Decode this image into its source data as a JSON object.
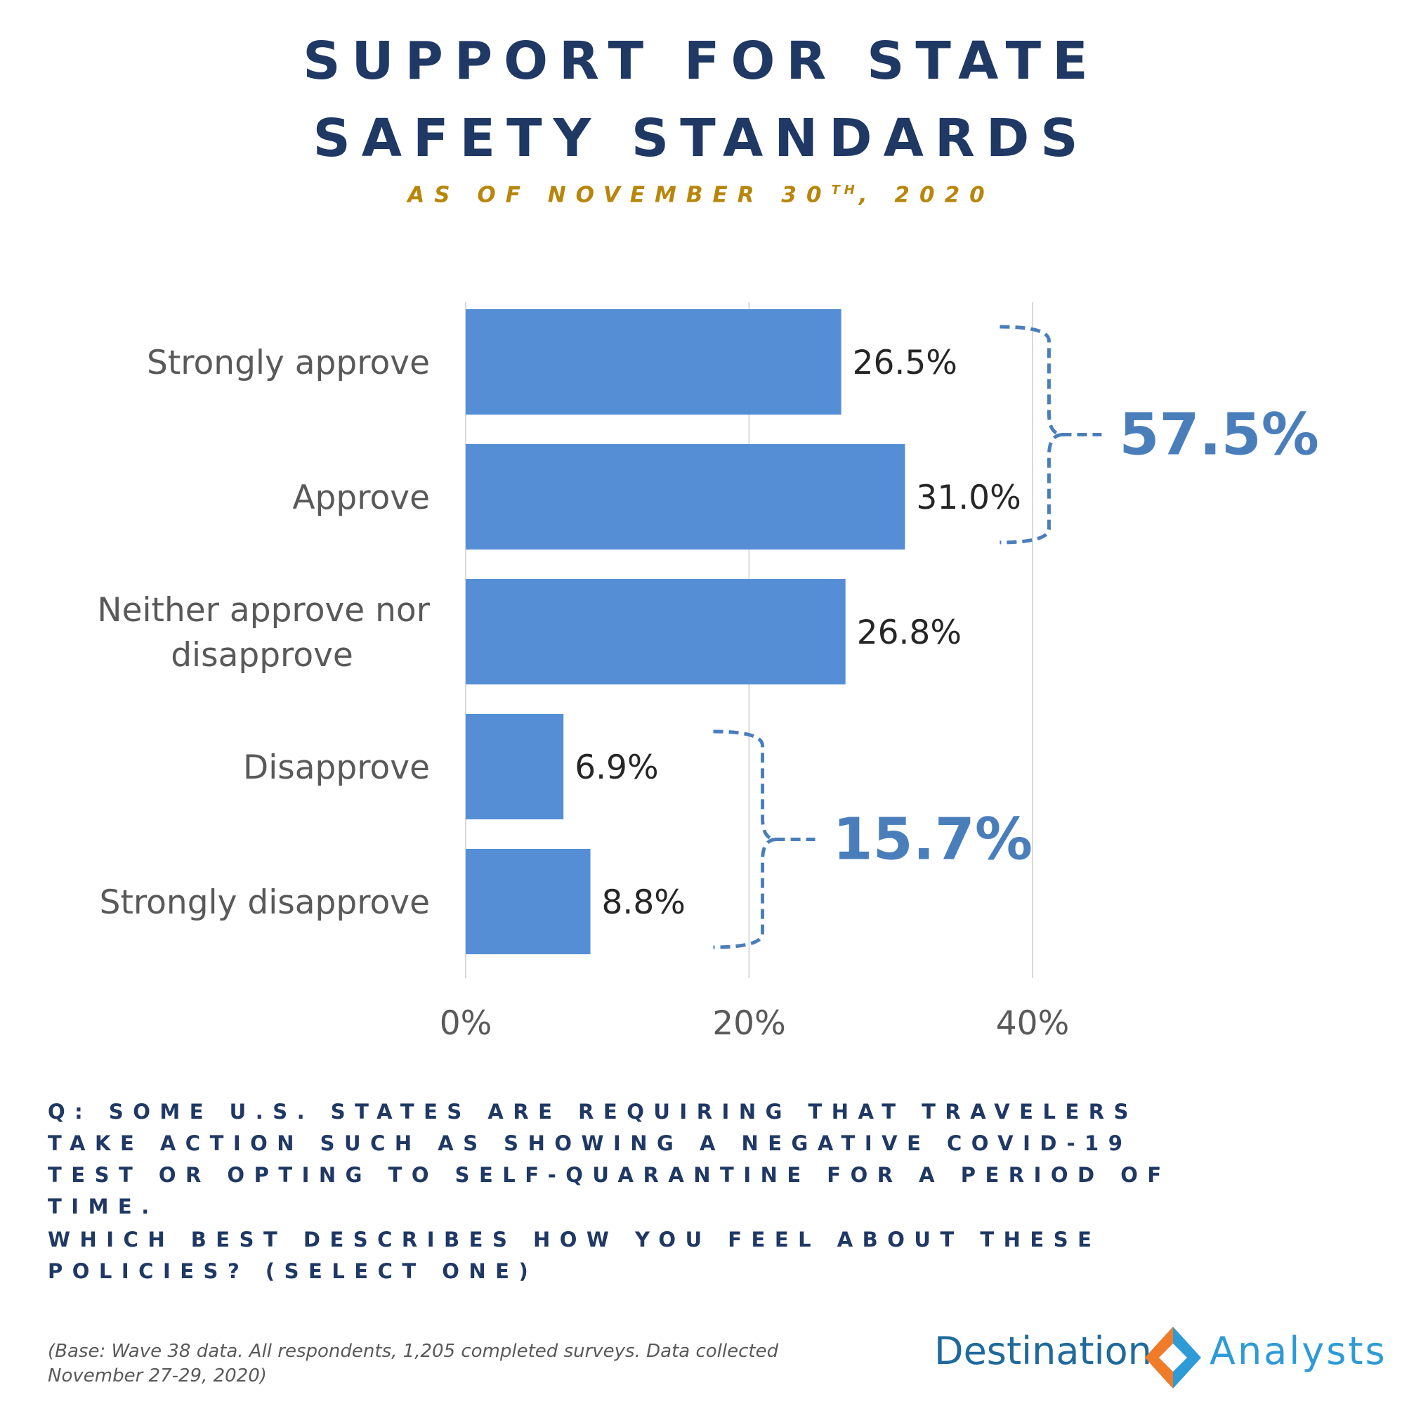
{
  "title_line1": "SUPPORT FOR STATE",
  "title_line2": "SAFETY STANDARDS",
  "subtitle_prefix": "AS OF NOVEMBER 30",
  "subtitle_sup": "TH",
  "subtitle_suffix": ", 2020",
  "chart_data": {
    "type": "bar",
    "orientation": "horizontal",
    "categories": [
      [
        "Strongly approve"
      ],
      [
        "Approve"
      ],
      [
        "Neither approve nor",
        "disapprove"
      ],
      [
        "Disapprove"
      ],
      [
        "Strongly disapprove"
      ]
    ],
    "values": [
      26.5,
      31.0,
      26.8,
      6.9,
      8.8
    ],
    "value_labels": [
      "26.5%",
      "31.0%",
      "26.8%",
      "6.9%",
      "8.8%"
    ],
    "xlim": [
      0,
      40
    ],
    "xticks": [
      0,
      20,
      40
    ],
    "xtick_labels": [
      "0%",
      "20%",
      "40%"
    ],
    "grid": true,
    "bar_color": "#558ed5",
    "groups": [
      {
        "label": "57.5%",
        "from": 0,
        "to": 1
      },
      {
        "label": "15.7%",
        "from": 3,
        "to": 4
      }
    ],
    "group_color": "#4a7ebb"
  },
  "question_1": "Q: SOME U.S. STATES ARE REQUIRING THAT TRAVELERS TAKE ACTION SUCH AS SHOWING A NEGATIVE COVID-19 TEST OR OPTING TO SELF-QUARANTINE FOR A PERIOD OF TIME.",
  "question_2": "WHICH BEST DESCRIBES HOW YOU FEEL ABOUT THESE POLICIES? (SELECT ONE)",
  "footnote": "(Base: Wave 38 data. All respondents, 1,205 completed surveys. Data collected November 27-29, 2020)",
  "logo_left": "Destination",
  "logo_right": "Analysts",
  "logo_icon": "diamond-logo-icon",
  "logo_colors": {
    "blue": "#2e9bd6",
    "orange": "#f07c2a"
  }
}
